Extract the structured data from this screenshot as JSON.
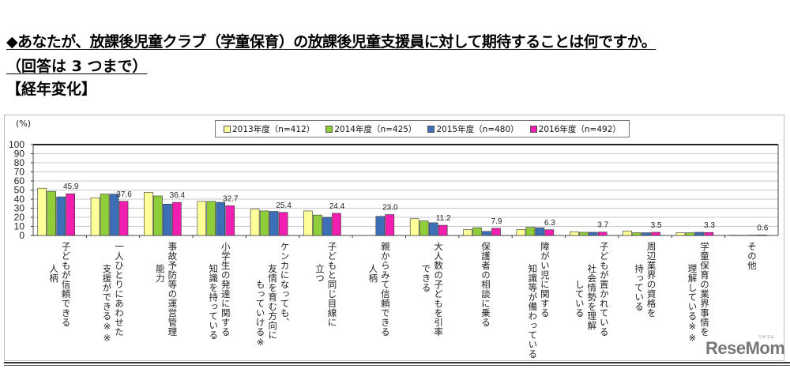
{
  "heading": {
    "question": "◆あなたが、放課後児童クラブ（学童保育）の放課後児童支援員に対して期待することは何ですか。",
    "note": "（回答は 3 つまで）",
    "section": "【経年変化】"
  },
  "watermark": {
    "text": "ReseMom",
    "small": "リセマム"
  },
  "chart_data": {
    "type": "bar",
    "title": "",
    "ylabel": "(%)",
    "xlabel": "",
    "ylim": [
      0,
      100
    ],
    "yticks": [
      0,
      10,
      20,
      30,
      40,
      50,
      60,
      70,
      80,
      90,
      100
    ],
    "grid": true,
    "legend_position": "top-center",
    "categories": [
      "子どもが信頼できる人柄",
      "一人ひとりにあわせた支援ができる※※",
      "事故予防等の運営管理能力",
      "小学生の発達に関する知識を持っている",
      "ケンカになっても、友情を育む方向にもっていける※",
      "子どもと同じ目線に立つ",
      "親からみて信頼できる人柄",
      "大人数の子どもを引率できる",
      "保護者の相談に乗る",
      "障がい児に関する知識等が備わっている",
      "子どもが置かれている社会情勢を理解している",
      "周辺業界の資格を持っている",
      "学童保育の業界事情を理解している※※",
      "その他"
    ],
    "category_lines": [
      [
        "子どもが信頼できる",
        "人柄"
      ],
      [
        "一人ひとりにあわせた",
        "支援ができる※※"
      ],
      [
        "事故予防等の運営管理",
        "能力"
      ],
      [
        "小学生の発達に関する",
        "知識を持っている"
      ],
      [
        "ケンカになっても、",
        "友情を育む方向に",
        "もっていける※"
      ],
      [
        "子どもと同じ目線に",
        "立つ"
      ],
      [
        "親からみて信頼できる",
        "人柄"
      ],
      [
        "大人数の子どもを引率",
        "できる"
      ],
      [
        "保護者の相談に乗る"
      ],
      [
        "障がい児に関する",
        "知識等が備わっている"
      ],
      [
        "子どもが置かれている",
        "社会情勢を理解",
        "している"
      ],
      [
        "周辺業界の資格を",
        "持っている"
      ],
      [
        "学童保育の業界事情を",
        "理解している※※"
      ],
      [
        "その他"
      ]
    ],
    "series": [
      {
        "name": "2013年度（n=412）",
        "color": "#ffff99",
        "values": [
          52.0,
          41.5,
          47.5,
          37.5,
          29.0,
          27.0,
          null,
          18.5,
          6.5,
          6.5,
          4.0,
          5.0,
          3.0,
          0.3
        ]
      },
      {
        "name": "2014年度（n=425）",
        "color": "#8fce3a",
        "values": [
          48.5,
          45.5,
          43.5,
          37.5,
          27.0,
          22.5,
          null,
          16.0,
          8.5,
          9.0,
          3.5,
          3.0,
          3.0,
          0.2
        ]
      },
      {
        "name": "2015年度（n=480）",
        "color": "#3d6fb6",
        "values": [
          42.5,
          45.5,
          34.5,
          36.5,
          26.5,
          20.0,
          21.0,
          14.0,
          4.5,
          8.5,
          3.5,
          3.0,
          3.5,
          0.4
        ]
      },
      {
        "name": "2016年度（n=492）",
        "color": "#f01fb0",
        "values": [
          45.9,
          37.6,
          36.4,
          32.7,
          25.4,
          24.4,
          23.0,
          11.2,
          7.9,
          6.3,
          3.7,
          3.5,
          3.3,
          0.6
        ]
      }
    ],
    "data_labels": [
      "45.9",
      "37.6",
      "36.4",
      "32.7",
      "25.4",
      "24.4",
      "23.0",
      "11.2",
      "7.9",
      "6.3",
      "3.7",
      "3.5",
      "3.3",
      "0.6"
    ],
    "data_labels_series": "2016年度（n=492）"
  }
}
